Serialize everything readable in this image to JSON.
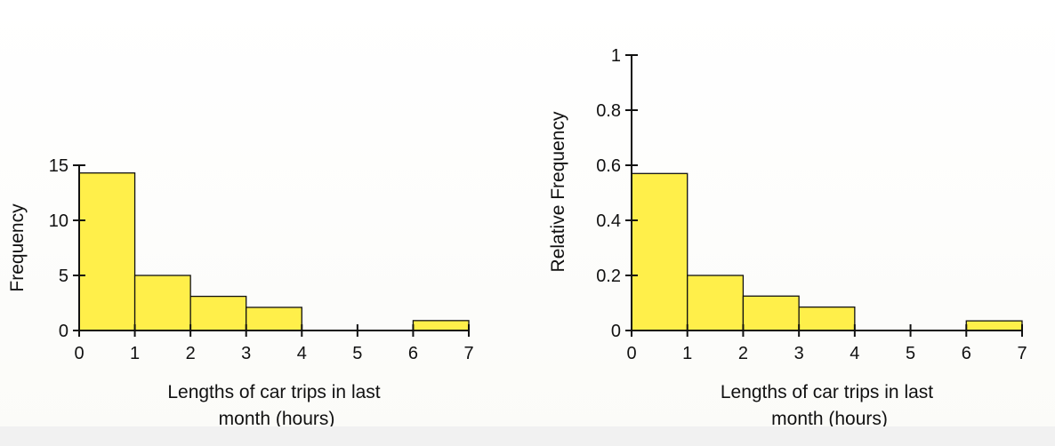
{
  "chart_data": [
    {
      "type": "bar",
      "xlabel_lines": [
        "Lengths of car trips in last",
        "month (hours)"
      ],
      "ylabel": "Frequency",
      "xlim": [
        0,
        7
      ],
      "ylim": [
        0,
        15
      ],
      "xticks": [
        "0",
        "1",
        "2",
        "3",
        "4",
        "5",
        "6",
        "7"
      ],
      "yticks": [
        "0",
        "5",
        "10",
        "15"
      ],
      "bins": [
        {
          "from": 0,
          "to": 1,
          "value": 14.3
        },
        {
          "from": 1,
          "to": 2,
          "value": 5
        },
        {
          "from": 2,
          "to": 3,
          "value": 3.1
        },
        {
          "from": 3,
          "to": 4,
          "value": 2.1
        },
        {
          "from": 4,
          "to": 5,
          "value": 0
        },
        {
          "from": 5,
          "to": 6,
          "value": 0
        },
        {
          "from": 6,
          "to": 7,
          "value": 0.9
        }
      ],
      "bar_color": "#ffef4a"
    },
    {
      "type": "bar",
      "xlabel_lines": [
        "Lengths of car trips in last",
        "month (hours)"
      ],
      "ylabel": "Relative Frequency",
      "xlim": [
        0,
        7
      ],
      "ylim": [
        0,
        1
      ],
      "xticks": [
        "0",
        "1",
        "2",
        "3",
        "4",
        "5",
        "6",
        "7"
      ],
      "yticks": [
        "0",
        "0.2",
        "0.4",
        "0.6",
        "0.8",
        "1"
      ],
      "bins": [
        {
          "from": 0,
          "to": 1,
          "value": 0.57
        },
        {
          "from": 1,
          "to": 2,
          "value": 0.2
        },
        {
          "from": 2,
          "to": 3,
          "value": 0.125
        },
        {
          "from": 3,
          "to": 4,
          "value": 0.085
        },
        {
          "from": 4,
          "to": 5,
          "value": 0
        },
        {
          "from": 5,
          "to": 6,
          "value": 0
        },
        {
          "from": 6,
          "to": 7,
          "value": 0.035
        }
      ],
      "bar_color": "#ffef4a"
    }
  ]
}
